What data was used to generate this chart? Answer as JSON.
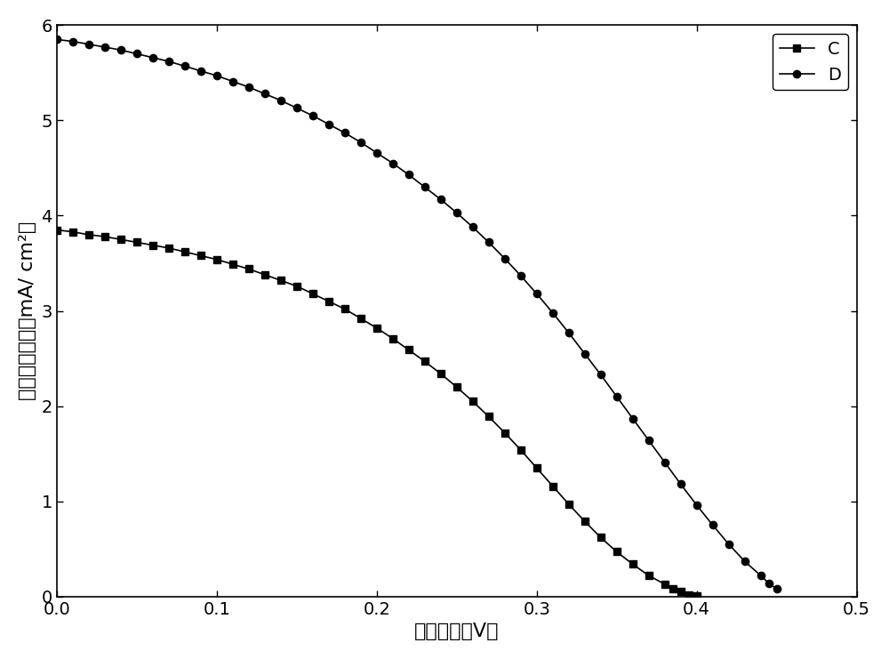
{
  "title": "",
  "xlabel": "开路电压（V）",
  "ylabel": "短路电流密度（mA/ cm²）",
  "xlim": [
    0.0,
    0.5
  ],
  "ylim": [
    0.0,
    6.0
  ],
  "xticks": [
    0.0,
    0.1,
    0.2,
    0.3,
    0.4,
    0.5
  ],
  "yticks": [
    0,
    1,
    2,
    3,
    4,
    5,
    6
  ],
  "background_color": "#ffffff",
  "series_C": {
    "label": "C",
    "color": "#000000",
    "marker": "s",
    "x": [
      0.0,
      0.01,
      0.02,
      0.03,
      0.04,
      0.05,
      0.06,
      0.07,
      0.08,
      0.09,
      0.1,
      0.11,
      0.12,
      0.13,
      0.14,
      0.15,
      0.16,
      0.17,
      0.18,
      0.19,
      0.2,
      0.21,
      0.22,
      0.23,
      0.24,
      0.25,
      0.26,
      0.27,
      0.28,
      0.29,
      0.3,
      0.31,
      0.32,
      0.33,
      0.34,
      0.35,
      0.36,
      0.37,
      0.38,
      0.385,
      0.39,
      0.395,
      0.4
    ],
    "y": [
      3.85,
      3.83,
      3.8,
      3.78,
      3.75,
      3.72,
      3.69,
      3.66,
      3.62,
      3.58,
      3.54,
      3.49,
      3.44,
      3.38,
      3.32,
      3.26,
      3.18,
      3.1,
      3.02,
      2.92,
      2.82,
      2.71,
      2.59,
      2.47,
      2.34,
      2.2,
      2.05,
      1.89,
      1.72,
      1.54,
      1.35,
      1.16,
      0.97,
      0.79,
      0.62,
      0.47,
      0.34,
      0.22,
      0.13,
      0.08,
      0.05,
      0.02,
      0.01
    ]
  },
  "series_D": {
    "label": "D",
    "color": "#000000",
    "marker": "o",
    "x": [
      0.0,
      0.01,
      0.02,
      0.03,
      0.04,
      0.05,
      0.06,
      0.07,
      0.08,
      0.09,
      0.1,
      0.11,
      0.12,
      0.13,
      0.14,
      0.15,
      0.16,
      0.17,
      0.18,
      0.19,
      0.2,
      0.21,
      0.22,
      0.23,
      0.24,
      0.25,
      0.26,
      0.27,
      0.28,
      0.29,
      0.3,
      0.31,
      0.32,
      0.33,
      0.34,
      0.35,
      0.36,
      0.37,
      0.38,
      0.39,
      0.4,
      0.41,
      0.42,
      0.43,
      0.44,
      0.445,
      0.45
    ],
    "y": [
      5.85,
      5.83,
      5.8,
      5.77,
      5.74,
      5.7,
      5.66,
      5.62,
      5.57,
      5.52,
      5.47,
      5.41,
      5.35,
      5.28,
      5.21,
      5.13,
      5.05,
      4.96,
      4.87,
      4.77,
      4.66,
      4.55,
      4.43,
      4.3,
      4.17,
      4.03,
      3.88,
      3.72,
      3.55,
      3.37,
      3.18,
      2.98,
      2.77,
      2.55,
      2.33,
      2.1,
      1.87,
      1.64,
      1.41,
      1.18,
      0.96,
      0.75,
      0.55,
      0.37,
      0.22,
      0.14,
      0.08
    ]
  },
  "legend_loc": "upper right",
  "marker_size": 6,
  "linewidth": 1.2,
  "font_size_label": 16,
  "font_size_tick": 14,
  "font_size_legend": 14
}
